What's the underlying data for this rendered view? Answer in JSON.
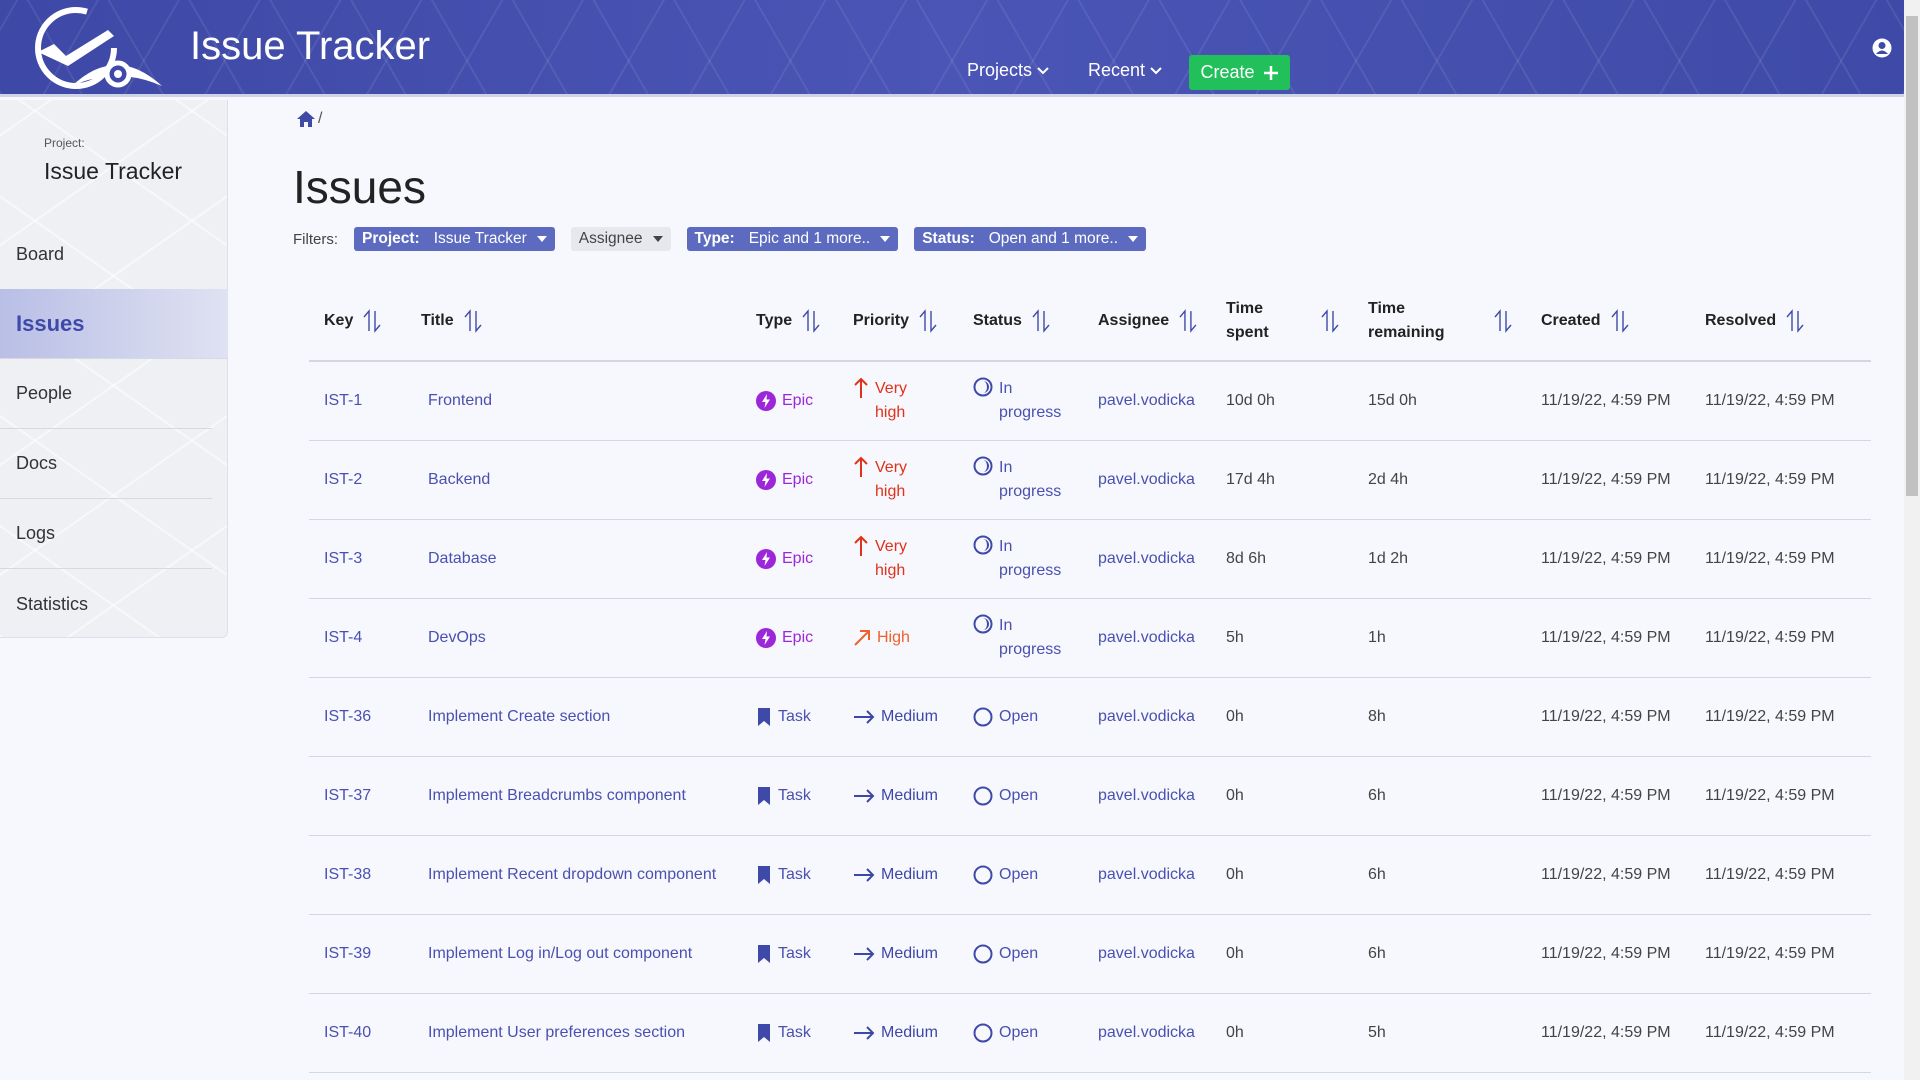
{
  "header": {
    "app_title": "Issue Tracker",
    "nav": [
      {
        "label": "Projects"
      },
      {
        "label": "Recent"
      }
    ],
    "create_label": "Create",
    "brand_color": "#3f4aa8",
    "create_color": "#22c05a"
  },
  "sidebar": {
    "project_label": "Project:",
    "project_name": "Issue Tracker",
    "items": [
      {
        "label": "Board"
      },
      {
        "label": "Issues",
        "active": true
      },
      {
        "label": "People"
      },
      {
        "label": "Docs"
      },
      {
        "label": "Logs"
      },
      {
        "label": "Statistics"
      }
    ]
  },
  "breadcrumb": {
    "separator": "/"
  },
  "page": {
    "title": "Issues"
  },
  "filters": {
    "label": "Filters:",
    "project": {
      "key": "Project:",
      "value": "Issue Tracker"
    },
    "assignee": {
      "value": "Assignee"
    },
    "type": {
      "key": "Type:",
      "value": "Epic and 1 more.."
    },
    "status": {
      "key": "Status:",
      "value": "Open and 1 more.."
    }
  },
  "table": {
    "columns": [
      "Key",
      "Title",
      "Type",
      "Priority",
      "Status",
      "Assignee",
      "Time spent",
      "Time remaining",
      "Created",
      "Resolved"
    ],
    "rows": [
      {
        "key": "IST-1",
        "title": "Frontend",
        "type": "Epic",
        "priority": "Very high",
        "status": "In progress",
        "assignee": "pavel.vodicka",
        "spent": "10d 0h",
        "remaining": "15d 0h",
        "created": "11/19/22, 4:59 PM",
        "resolved": "11/19/22, 4:59 PM"
      },
      {
        "key": "IST-2",
        "title": "Backend",
        "type": "Epic",
        "priority": "Very high",
        "status": "In progress",
        "assignee": "pavel.vodicka",
        "spent": "17d 4h",
        "remaining": "2d 4h",
        "created": "11/19/22, 4:59 PM",
        "resolved": "11/19/22, 4:59 PM"
      },
      {
        "key": "IST-3",
        "title": "Database",
        "type": "Epic",
        "priority": "Very high",
        "status": "In progress",
        "assignee": "pavel.vodicka",
        "spent": "8d 6h",
        "remaining": "1d 2h",
        "created": "11/19/22, 4:59 PM",
        "resolved": "11/19/22, 4:59 PM"
      },
      {
        "key": "IST-4",
        "title": "DevOps",
        "type": "Epic",
        "priority": "High",
        "status": "In progress",
        "assignee": "pavel.vodicka",
        "spent": "5h",
        "remaining": "1h",
        "created": "11/19/22, 4:59 PM",
        "resolved": "11/19/22, 4:59 PM"
      },
      {
        "key": "IST-36",
        "title": "Implement Create section",
        "type": "Task",
        "priority": "Medium",
        "status": "Open",
        "assignee": "pavel.vodicka",
        "spent": "0h",
        "remaining": "8h",
        "created": "11/19/22, 4:59 PM",
        "resolved": "11/19/22, 4:59 PM"
      },
      {
        "key": "IST-37",
        "title": "Implement Breadcrumbs component",
        "type": "Task",
        "priority": "Medium",
        "status": "Open",
        "assignee": "pavel.vodicka",
        "spent": "0h",
        "remaining": "6h",
        "created": "11/19/22, 4:59 PM",
        "resolved": "11/19/22, 4:59 PM"
      },
      {
        "key": "IST-38",
        "title": "Implement Recent dropdown component",
        "type": "Task",
        "priority": "Medium",
        "status": "Open",
        "assignee": "pavel.vodicka",
        "spent": "0h",
        "remaining": "6h",
        "created": "11/19/22, 4:59 PM",
        "resolved": "11/19/22, 4:59 PM"
      },
      {
        "key": "IST-39",
        "title": "Implement Log in/Log out component",
        "type": "Task",
        "priority": "Medium",
        "status": "Open",
        "assignee": "pavel.vodicka",
        "spent": "0h",
        "remaining": "6h",
        "created": "11/19/22, 4:59 PM",
        "resolved": "11/19/22, 4:59 PM"
      },
      {
        "key": "IST-40",
        "title": "Implement User preferences section",
        "type": "Task",
        "priority": "Medium",
        "status": "Open",
        "assignee": "pavel.vodicka",
        "spent": "0h",
        "remaining": "5h",
        "created": "11/19/22, 4:59 PM",
        "resolved": "11/19/22, 4:59 PM"
      }
    ]
  },
  "colors": {
    "epic": "#9b27d9",
    "very_high": "#e0321a",
    "high": "#f0602a",
    "medium": "#3d47a6",
    "link": "#4a50b0"
  }
}
